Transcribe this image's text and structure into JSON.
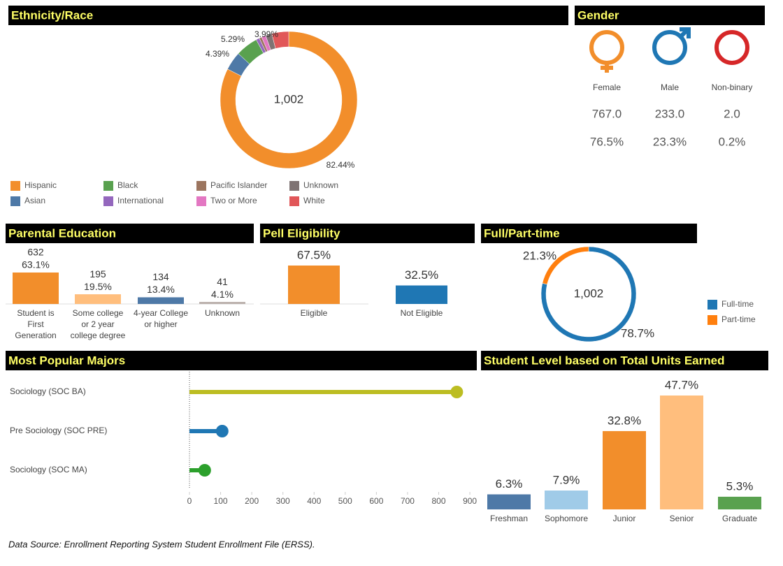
{
  "chart_data": [
    {
      "type": "donut",
      "title": "Ethnicity/Race",
      "center_label": "1,002",
      "categories": [
        "Hispanic",
        "Asian",
        "Black",
        "International",
        "Pacific Islander",
        "Two or More",
        "Unknown",
        "White"
      ],
      "values": [
        82.44,
        4.39,
        5.29,
        0.8,
        0.6,
        1.0,
        1.49,
        3.99
      ],
      "value_labels": [
        "82.44%",
        "4.39%",
        "5.29%",
        null,
        null,
        null,
        null,
        "3.99%"
      ],
      "colors": [
        "#f28e2b",
        "#4e79a7",
        "#59a14f",
        "#9467bd",
        "#9c755f",
        "#e377c2",
        "#7f7373",
        "#e15759"
      ]
    },
    {
      "type": "gender",
      "title": "Gender",
      "categories": [
        "Female",
        "Male",
        "Non-binary"
      ],
      "values": [
        767,
        233,
        2
      ],
      "value_labels": [
        "767.0",
        "233.0",
        "2.0"
      ],
      "shares": [
        76.5,
        23.3,
        0.2
      ],
      "share_labels": [
        "76.5%",
        "23.3%",
        "0.2%"
      ],
      "colors": [
        "#f28e2b",
        "#1f77b4",
        "#d62728"
      ]
    },
    {
      "type": "bar",
      "title": "Parental Education",
      "categories": [
        "Student is First Generation",
        "Some college or 2 year college degree",
        "4-year College or higher",
        "Unknown"
      ],
      "values": [
        632,
        195,
        134,
        41
      ],
      "shares": [
        63.1,
        19.5,
        13.4,
        4.1
      ],
      "share_labels": [
        "63.1%",
        "19.5%",
        "13.4%",
        "4.1%"
      ],
      "colors": [
        "#f28e2b",
        "#ffbe7d",
        "#4e79a7",
        "#bab0ac"
      ]
    },
    {
      "type": "bar",
      "title": "Pell Eligibility",
      "categories": [
        "Eligible",
        "Not Eligible"
      ],
      "values": [
        67.5,
        32.5
      ],
      "value_labels": [
        "67.5%",
        "32.5%"
      ],
      "colors": [
        "#f28e2b",
        "#1f77b4"
      ]
    },
    {
      "type": "donut",
      "title": "Full/Part-time",
      "center_label": "1,002",
      "categories": [
        "Full-time",
        "Part-time"
      ],
      "values": [
        78.7,
        21.3
      ],
      "value_labels": [
        "78.7%",
        "21.3%"
      ],
      "colors": [
        "#1f77b4",
        "#ff7f0e"
      ]
    },
    {
      "type": "lollipop",
      "title": "Most Popular Majors",
      "categories": [
        "Sociology (SOC BA)",
        "Pre Sociology (SOC PRE)",
        "Sociology (SOC MA)"
      ],
      "values": [
        858,
        105,
        49
      ],
      "colors": [
        "#bcbd22",
        "#1f77b4",
        "#2ca02c"
      ],
      "xlim": [
        0,
        920
      ],
      "xticks": [
        0,
        100,
        200,
        300,
        400,
        500,
        600,
        700,
        800,
        900
      ]
    },
    {
      "type": "bar",
      "title": "Student Level based on Total Units Earned",
      "categories": [
        "Freshman",
        "Sophomore",
        "Junior",
        "Senior",
        "Graduate"
      ],
      "values": [
        6.3,
        7.9,
        32.8,
        47.7,
        5.3
      ],
      "value_labels": [
        "6.3%",
        "7.9%",
        "32.8%",
        "47.7%",
        "5.3%"
      ],
      "colors": [
        "#4e79a7",
        "#a0cbe8",
        "#f28e2b",
        "#ffbe7d",
        "#59a14f"
      ]
    }
  ],
  "footer": "Data Source: Enrollment Reporting System Student Enrollment File (ERSS)."
}
